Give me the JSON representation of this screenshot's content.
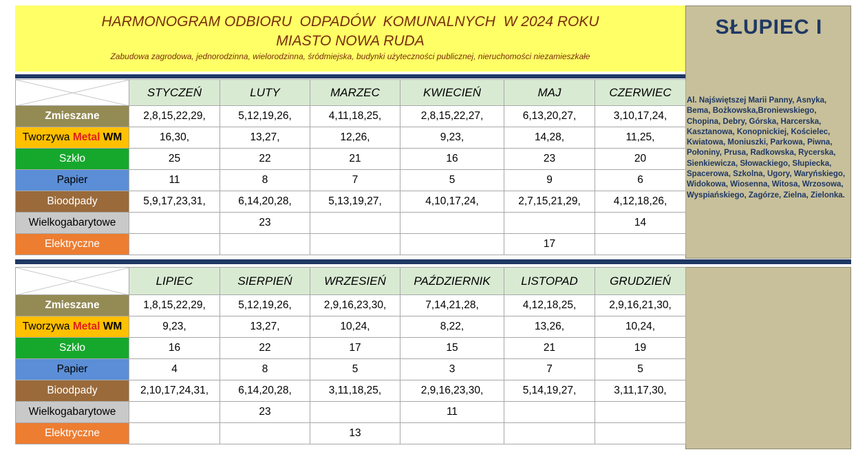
{
  "header": {
    "title_line1": "HARMONOGRAM ODBIORU  ODPADÓW  KOMUNALNYCH  W 2024 ROKU",
    "title_line2": "MIASTO NOWA RUDA",
    "subtitle": "Zabudowa zagrodowa, jednorodzinna, wielorodzinna, śródmiejska, budynki użyteczności publicznej, nieruchomości niezamieszkałe"
  },
  "area": {
    "name": "SŁUPIEC  I",
    "streets": "Al. Najświętszej Marii Panny, Asnyka, Bema, Bożkowska,Broniewskiego, Chopina, Debry, Górska, Harcerska, Kasztanowa, Konopnickiej, Kościelec, Kwiatowa, Moniuszki, Parkowa, Piwna, Połoniny, Prusa, Radkowska, Rycerska, Sienkiewicza, Słowackiego, Słupiecka, Spacerowa, Szkolna, Ugory, Waryńskiego, Widokowa, Wiosenna, Witosa, Wrzosowa, Wyspiańskiego, Zagórze, Zielna, Zielonka."
  },
  "categories": {
    "zmieszane": "Zmieszane",
    "tworzywa_prefix": "Tworzywa",
    "tworzywa_metal": "Metal",
    "tworzywa_wm": "WM",
    "szklo": "Szkło",
    "papier": "Papier",
    "bio": "Bioodpady",
    "wielko": "Wielkogabarytowe",
    "elektro": "Elektryczne"
  },
  "colors": {
    "zmieszane": "#948a54",
    "tworzywa": "#ffc000",
    "szklo": "#16a82c",
    "papier": "#5b8ed6",
    "bio": "#9a6a3a",
    "wielko": "#c9c9c9",
    "elektro": "#ed7d31",
    "header_yellow": "#ffff66",
    "month_header": "#d9ead3",
    "area_panel": "#c8c09a",
    "navy": "#1f3864"
  },
  "half1": {
    "months": [
      "STYCZEŃ",
      "LUTY",
      "MARZEC",
      "KWIECIEŃ",
      "MAJ",
      "CZERWIEC"
    ],
    "zmieszane": [
      "2,8,15,22,29,",
      "5,12,19,26,",
      "4,11,18,25,",
      "2,8,15,22,27,",
      "6,13,20,27,",
      "3,10,17,24,"
    ],
    "tworzywa": [
      "16,30,",
      "13,27,",
      "12,26,",
      "9,23,",
      "14,28,",
      "11,25,"
    ],
    "szklo": [
      "25",
      "22",
      "21",
      "16",
      "23",
      "20"
    ],
    "papier": [
      "11",
      "8",
      "7",
      "5",
      "9",
      "6"
    ],
    "bio": [
      "5,9,17,23,31,",
      "6,14,20,28,",
      "5,13,19,27,",
      "4,10,17,24,",
      "2,7,15,21,29,",
      "4,12,18,26,"
    ],
    "wielko": [
      "",
      "23",
      "",
      "",
      "",
      "14"
    ],
    "elektro": [
      "",
      "",
      "",
      "",
      "17",
      ""
    ]
  },
  "half2": {
    "months": [
      "LIPIEC",
      "SIERPIEŃ",
      "WRZESIEŃ",
      "PAŹDZIERNIK",
      "LISTOPAD",
      "GRUDZIEŃ"
    ],
    "zmieszane": [
      "1,8,15,22,29,",
      "5,12,19,26,",
      "2,9,16,23,30,",
      "7,14,21,28,",
      "4,12,18,25,",
      "2,9,16,21,30,"
    ],
    "tworzywa": [
      "9,23,",
      "13,27,",
      "10,24,",
      "8,22,",
      "13,26,",
      "10,24,"
    ],
    "szklo": [
      "16",
      "22",
      "17",
      "15",
      "21",
      "19"
    ],
    "papier": [
      "4",
      "8",
      "5",
      "3",
      "7",
      "5"
    ],
    "bio": [
      "2,10,17,24,31,",
      "6,14,20,28,",
      "3,11,18,25,",
      "2,9,16,23,30,",
      "5,14,19,27,",
      "3,11,17,30,"
    ],
    "wielko": [
      "",
      "23",
      "",
      "11",
      "",
      ""
    ],
    "elektro": [
      "",
      "",
      "13",
      "",
      "",
      ""
    ]
  }
}
